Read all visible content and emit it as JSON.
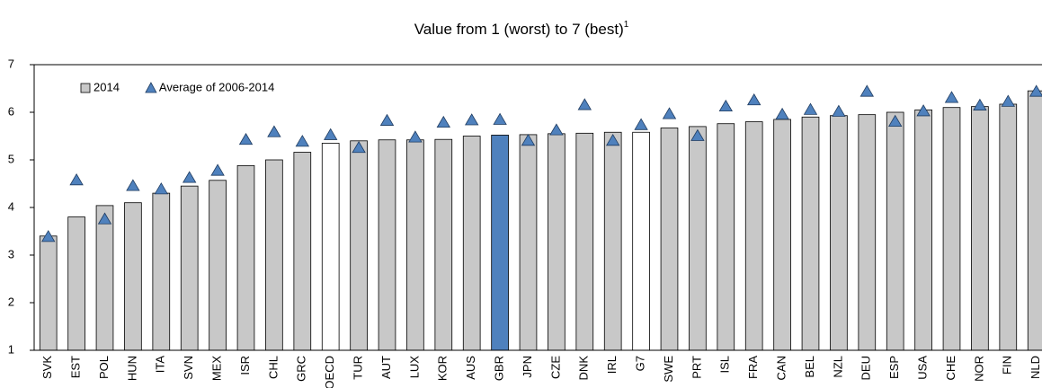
{
  "chart_data": {
    "type": "bar",
    "title": "Value from 1 (worst) to 7 (best)",
    "title_footnote": "1",
    "categories": [
      "SVK",
      "EST",
      "POL",
      "HUN",
      "ITA",
      "SVN",
      "MEX",
      "ISR",
      "CHL",
      "GRC",
      "OECD",
      "TUR",
      "AUT",
      "LUX",
      "KOR",
      "AUS",
      "GBR",
      "JPN",
      "CZE",
      "DNK",
      "IRL",
      "G7",
      "SWE",
      "PRT",
      "ISL",
      "FRA",
      "CAN",
      "BEL",
      "NZL",
      "DEU",
      "ESP",
      "USA",
      "CHE",
      "NOR",
      "FIN",
      "NLD"
    ],
    "series": [
      {
        "name": "2014",
        "type": "bar",
        "color": "#c8c8c8",
        "colors": [
          "#c8c8c8",
          "#c8c8c8",
          "#c8c8c8",
          "#c8c8c8",
          "#c8c8c8",
          "#c8c8c8",
          "#c8c8c8",
          "#c8c8c8",
          "#c8c8c8",
          "#c8c8c8",
          "#ffffff",
          "#c8c8c8",
          "#c8c8c8",
          "#c8c8c8",
          "#c8c8c8",
          "#c8c8c8",
          "#4f81bd",
          "#c8c8c8",
          "#c8c8c8",
          "#c8c8c8",
          "#c8c8c8",
          "#ffffff",
          "#c8c8c8",
          "#c8c8c8",
          "#c8c8c8",
          "#c8c8c8",
          "#c8c8c8",
          "#c8c8c8",
          "#c8c8c8",
          "#c8c8c8",
          "#c8c8c8",
          "#c8c8c8",
          "#c8c8c8",
          "#c8c8c8",
          "#c8c8c8",
          "#c8c8c8"
        ],
        "values": [
          3.4,
          3.8,
          4.04,
          4.1,
          4.3,
          4.45,
          4.57,
          4.88,
          5.0,
          5.16,
          5.35,
          5.4,
          5.42,
          5.42,
          5.43,
          5.5,
          5.52,
          5.53,
          5.55,
          5.56,
          5.58,
          5.58,
          5.67,
          5.7,
          5.76,
          5.8,
          5.85,
          5.9,
          5.93,
          5.95,
          6.0,
          6.05,
          6.1,
          6.12,
          6.17,
          6.45
        ]
      },
      {
        "name": "Average of 2006-2014",
        "type": "triangle",
        "color": "#4f81bd",
        "values": [
          3.38,
          4.57,
          3.75,
          4.45,
          4.38,
          4.62,
          4.77,
          5.42,
          5.58,
          5.38,
          5.52,
          5.25,
          5.82,
          5.47,
          5.78,
          5.83,
          5.84,
          5.4,
          5.62,
          6.15,
          5.4,
          5.73,
          5.96,
          5.5,
          6.12,
          6.25,
          5.95,
          6.05,
          6.01,
          6.43,
          5.8,
          6.02,
          6.3,
          6.14,
          6.22,
          6.43
        ]
      }
    ],
    "ylim": [
      1,
      7
    ],
    "yticks": [
      1,
      2,
      3,
      4,
      5,
      6,
      7
    ],
    "grid": false,
    "legend": "top-left"
  }
}
